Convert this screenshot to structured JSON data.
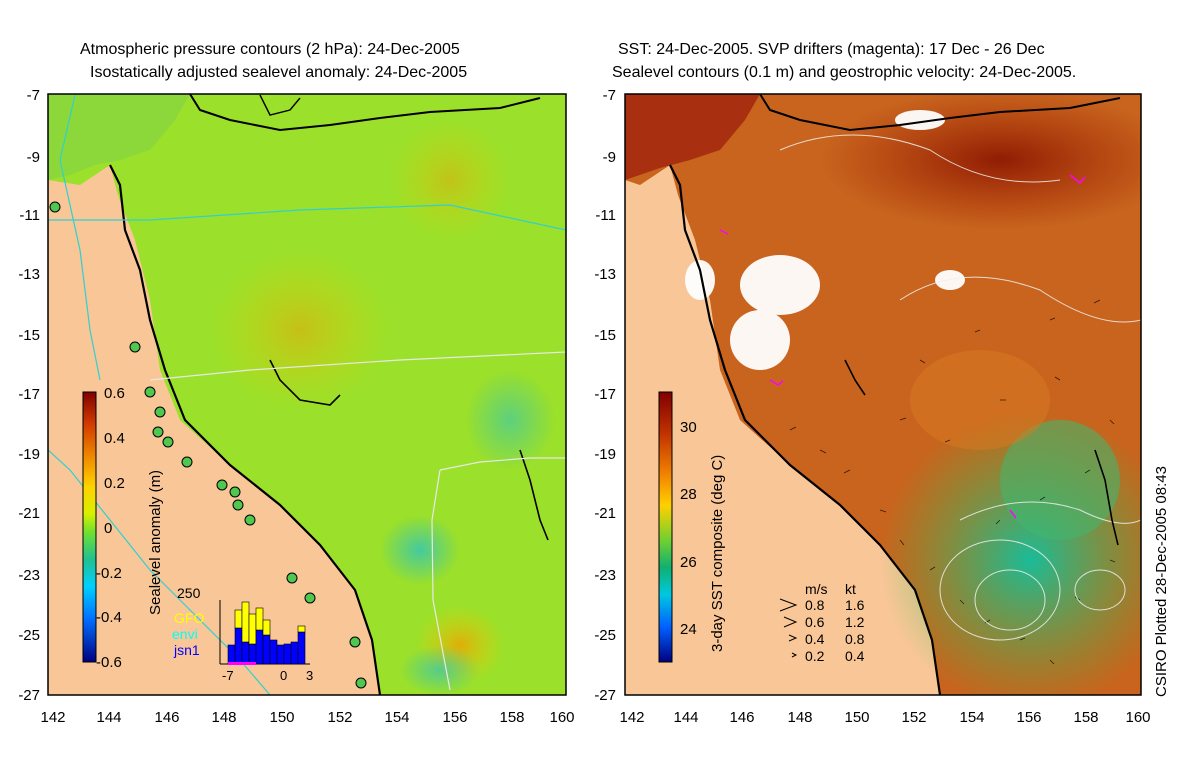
{
  "left_panel": {
    "title_line1": "Atmospheric pressure contours (2 hPa): 24-Dec-2005",
    "title_line2": "Isostatically adjusted sealevel anomaly: 24-Dec-2005",
    "colorbar_label": "Sealevel anomaly (m)",
    "colorbar_ticks": [
      "0.6",
      "0.4",
      "0.2",
      "0",
      "-0.2",
      "-0.4",
      "-0.6"
    ],
    "inset": {
      "ymax_label": "250",
      "legend": [
        {
          "label": "GFO",
          "color": "#ffff00"
        },
        {
          "label": "envi",
          "color": "#00ffff"
        },
        {
          "label": "jsn1",
          "color": "#0000ff"
        }
      ],
      "x_ticks": [
        "-7",
        "0",
        "3"
      ]
    }
  },
  "right_panel": {
    "title_line1": "SST: 24-Dec-2005. SVP drifters (magenta): 17 Dec - 26 Dec",
    "title_line2": "Sealevel contours (0.1 m) and geostrophic velocity: 24-Dec-2005.",
    "colorbar_label": "3-day SST composite (deg C)",
    "colorbar_ticks": [
      "30",
      "28",
      "26",
      "24"
    ],
    "velocity_legend": {
      "header_ms": "m/s",
      "header_kt": "kt",
      "rows": [
        {
          "ms": "0.8",
          "kt": "1.6"
        },
        {
          "ms": "0.6",
          "kt": "1.2"
        },
        {
          "ms": "0.4",
          "kt": "0.8"
        },
        {
          "ms": "0.2",
          "kt": "0.4"
        }
      ]
    }
  },
  "axes": {
    "y_ticks": [
      "-7",
      "-9",
      "-11",
      "-13",
      "-15",
      "-17",
      "-19",
      "-21",
      "-23",
      "-25",
      "-27"
    ],
    "x_ticks": [
      "142",
      "144",
      "146",
      "148",
      "150",
      "152",
      "154",
      "156",
      "158",
      "160"
    ]
  },
  "credit": "CSIRO Plotted 28-Dec-2005 08:43",
  "colors": {
    "land": "#f9c697",
    "sla_base": "#9be02a",
    "sst_base": "#c8641e",
    "coast": "#000000"
  }
}
